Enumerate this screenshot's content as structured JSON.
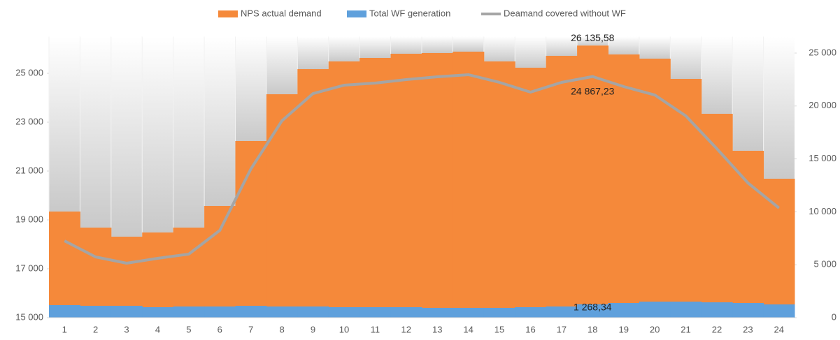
{
  "chart_data": {
    "type": "bar",
    "categories": [
      "1",
      "2",
      "3",
      "4",
      "5",
      "6",
      "7",
      "8",
      "9",
      "10",
      "11",
      "12",
      "13",
      "14",
      "15",
      "16",
      "17",
      "18",
      "19",
      "20",
      "21",
      "22",
      "23",
      "24"
    ],
    "series": [
      {
        "name": "NPS actual demand",
        "color": "#f5893a",
        "type": "bar",
        "axis": "y",
        "values": [
          19343,
          18686,
          18314,
          18486,
          18686,
          19571,
          22229,
          24143,
          25171,
          25486,
          25629,
          25800,
          25829,
          25886,
          25486,
          25229,
          25714,
          26135.58,
          25771,
          25600,
          24771,
          23343,
          21829,
          20686
        ],
        "value_labels": [
          null,
          null,
          null,
          null,
          null,
          null,
          null,
          null,
          null,
          null,
          null,
          null,
          null,
          null,
          null,
          null,
          null,
          "26 135,58",
          null,
          null,
          null,
          null,
          null,
          null
        ]
      },
      {
        "name": "Total WF generation",
        "color": "#5fa0dc",
        "type": "bar",
        "axis": "y2",
        "values": [
          1190,
          1120,
          1120,
          990,
          1055,
          1055,
          1120,
          1055,
          1055,
          990,
          990,
          990,
          925,
          925,
          925,
          990,
          1055,
          1268.34,
          1385,
          1515,
          1515,
          1450,
          1385,
          1250
        ],
        "value_labels": [
          null,
          null,
          null,
          null,
          null,
          null,
          null,
          null,
          null,
          null,
          null,
          null,
          null,
          null,
          null,
          null,
          null,
          "1 268,34",
          null,
          null,
          null,
          null,
          null,
          null
        ]
      },
      {
        "name": "Deamand covered without WF",
        "color": "#a5a5a5",
        "type": "line",
        "axis": "y",
        "values": [
          18143,
          17486,
          17229,
          17429,
          17600,
          18571,
          21086,
          23057,
          24171,
          24514,
          24600,
          24743,
          24857,
          24943,
          24629,
          24229,
          24629,
          24867.23,
          24457,
          24114,
          23257,
          21914,
          20514,
          19486
        ],
        "value_labels": [
          null,
          null,
          null,
          null,
          null,
          null,
          null,
          null,
          null,
          null,
          null,
          null,
          null,
          null,
          null,
          null,
          null,
          "24 867,23",
          null,
          null,
          null,
          null,
          null,
          null
        ]
      }
    ],
    "ylim": [
      15000,
      26500
    ],
    "yticks": [
      {
        "value": 15000,
        "label": "15 000"
      },
      {
        "value": 17000,
        "label": "17 000"
      },
      {
        "value": 19000,
        "label": "19 000"
      },
      {
        "value": 21000,
        "label": "21 000"
      },
      {
        "value": 23000,
        "label": "23 000"
      },
      {
        "value": 25000,
        "label": "25 000"
      }
    ],
    "y2lim": [
      0,
      26550
    ],
    "y2ticks": [
      0,
      {
        "value": 5000,
        "label": "5 000"
      },
      {
        "value": 10000,
        "label": "10 000"
      },
      {
        "value": 15000,
        "label": "15 000"
      },
      {
        "value": 20000,
        "label": "20 000"
      },
      {
        "value": 25000,
        "label": "25 000"
      }
    ],
    "legend": "top"
  }
}
